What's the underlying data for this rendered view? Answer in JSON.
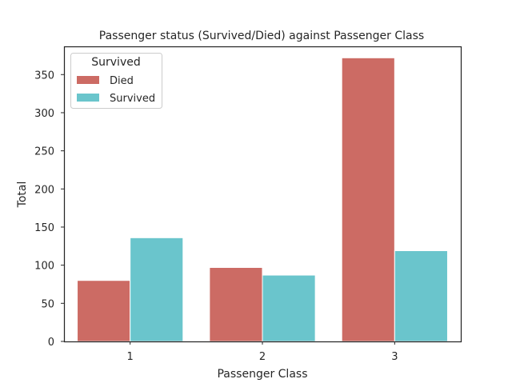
{
  "chart_data": {
    "type": "bar",
    "title": "Passenger status (Survived/Died) against Passenger Class",
    "xlabel": "Passenger Class",
    "ylabel": "Total",
    "categories": [
      "1",
      "2",
      "3"
    ],
    "series": [
      {
        "name": "Died",
        "color": "#cc6b64",
        "values": [
          80,
          97,
          372
        ]
      },
      {
        "name": "Survived",
        "color": "#6ac5cc",
        "values": [
          136,
          87,
          119
        ]
      }
    ],
    "ylim": [
      0,
      387
    ],
    "yticks": [
      0,
      50,
      100,
      150,
      200,
      250,
      300,
      350
    ],
    "grid": false,
    "legend": {
      "title": "Survived",
      "placement": "upper-left"
    }
  }
}
